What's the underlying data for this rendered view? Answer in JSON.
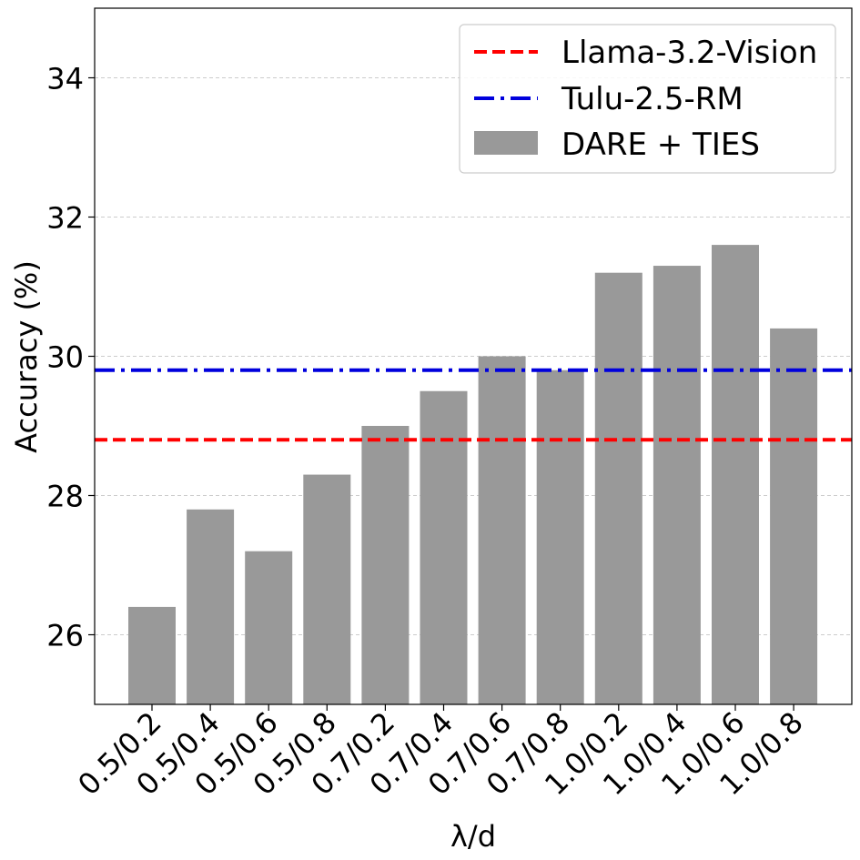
{
  "chart_data": {
    "type": "bar",
    "title": "",
    "xlabel": "λ/d",
    "ylabel": "Accuracy (%)",
    "ylim": [
      25.0,
      35.0
    ],
    "yticks": [
      26,
      28,
      30,
      32,
      34
    ],
    "grid": "horizontal dashed",
    "legend_position": "top-right",
    "categories": [
      "0.5/0.2",
      "0.5/0.4",
      "0.5/0.6",
      "0.5/0.8",
      "0.7/0.2",
      "0.7/0.4",
      "0.7/0.6",
      "0.7/0.8",
      "1.0/0.2",
      "1.0/0.4",
      "1.0/0.6",
      "1.0/0.8"
    ],
    "series": [
      {
        "name": "DARE + TIES",
        "type": "bar",
        "color": "#999999",
        "values": [
          26.4,
          27.8,
          27.2,
          28.3,
          29.0,
          29.5,
          30.0,
          29.8,
          31.2,
          31.3,
          31.6,
          30.4
        ]
      }
    ],
    "reference_lines": [
      {
        "name": "Llama-3.2-Vision",
        "value": 28.8,
        "color": "#ff0000",
        "style": "dashed"
      },
      {
        "name": "Tulu-2.5-RM",
        "value": 29.8,
        "color": "#0000dd",
        "style": "dash-dot"
      }
    ]
  }
}
